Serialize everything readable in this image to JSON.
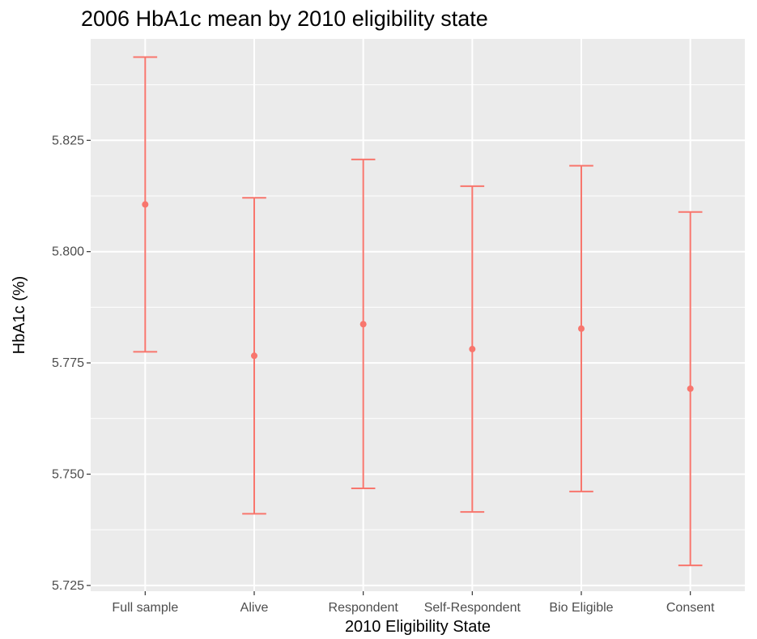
{
  "chart_data": {
    "type": "errorbar",
    "title": "2006 HbA1c mean by 2010 eligibility state",
    "xlabel": "2010 Eligibility State",
    "ylabel": "HbA1c (%)",
    "categories": [
      "Full sample",
      "Alive",
      "Respondent",
      "Self-Respondent",
      "Bio Eligible",
      "Consent"
    ],
    "series": [
      {
        "mean": [
          5.8106,
          5.7766,
          5.7837,
          5.7781,
          5.7827,
          5.7692
        ],
        "lower": [
          5.7775,
          5.7411,
          5.7468,
          5.7415,
          5.7461,
          5.7295
        ],
        "upper": [
          5.8437,
          5.8121,
          5.8207,
          5.8147,
          5.8193,
          5.8089
        ]
      }
    ],
    "ylim": [
      5.7237,
      5.8478
    ],
    "yticks": [
      "5.725",
      "5.750",
      "5.775",
      "5.800",
      "5.825"
    ],
    "ytick_values": [
      5.725,
      5.75,
      5.775,
      5.8,
      5.825
    ],
    "grid": true,
    "legend": "none",
    "colors": {
      "series": "#f8766d",
      "panel": "#ebebeb",
      "grid": "#ffffff"
    }
  }
}
